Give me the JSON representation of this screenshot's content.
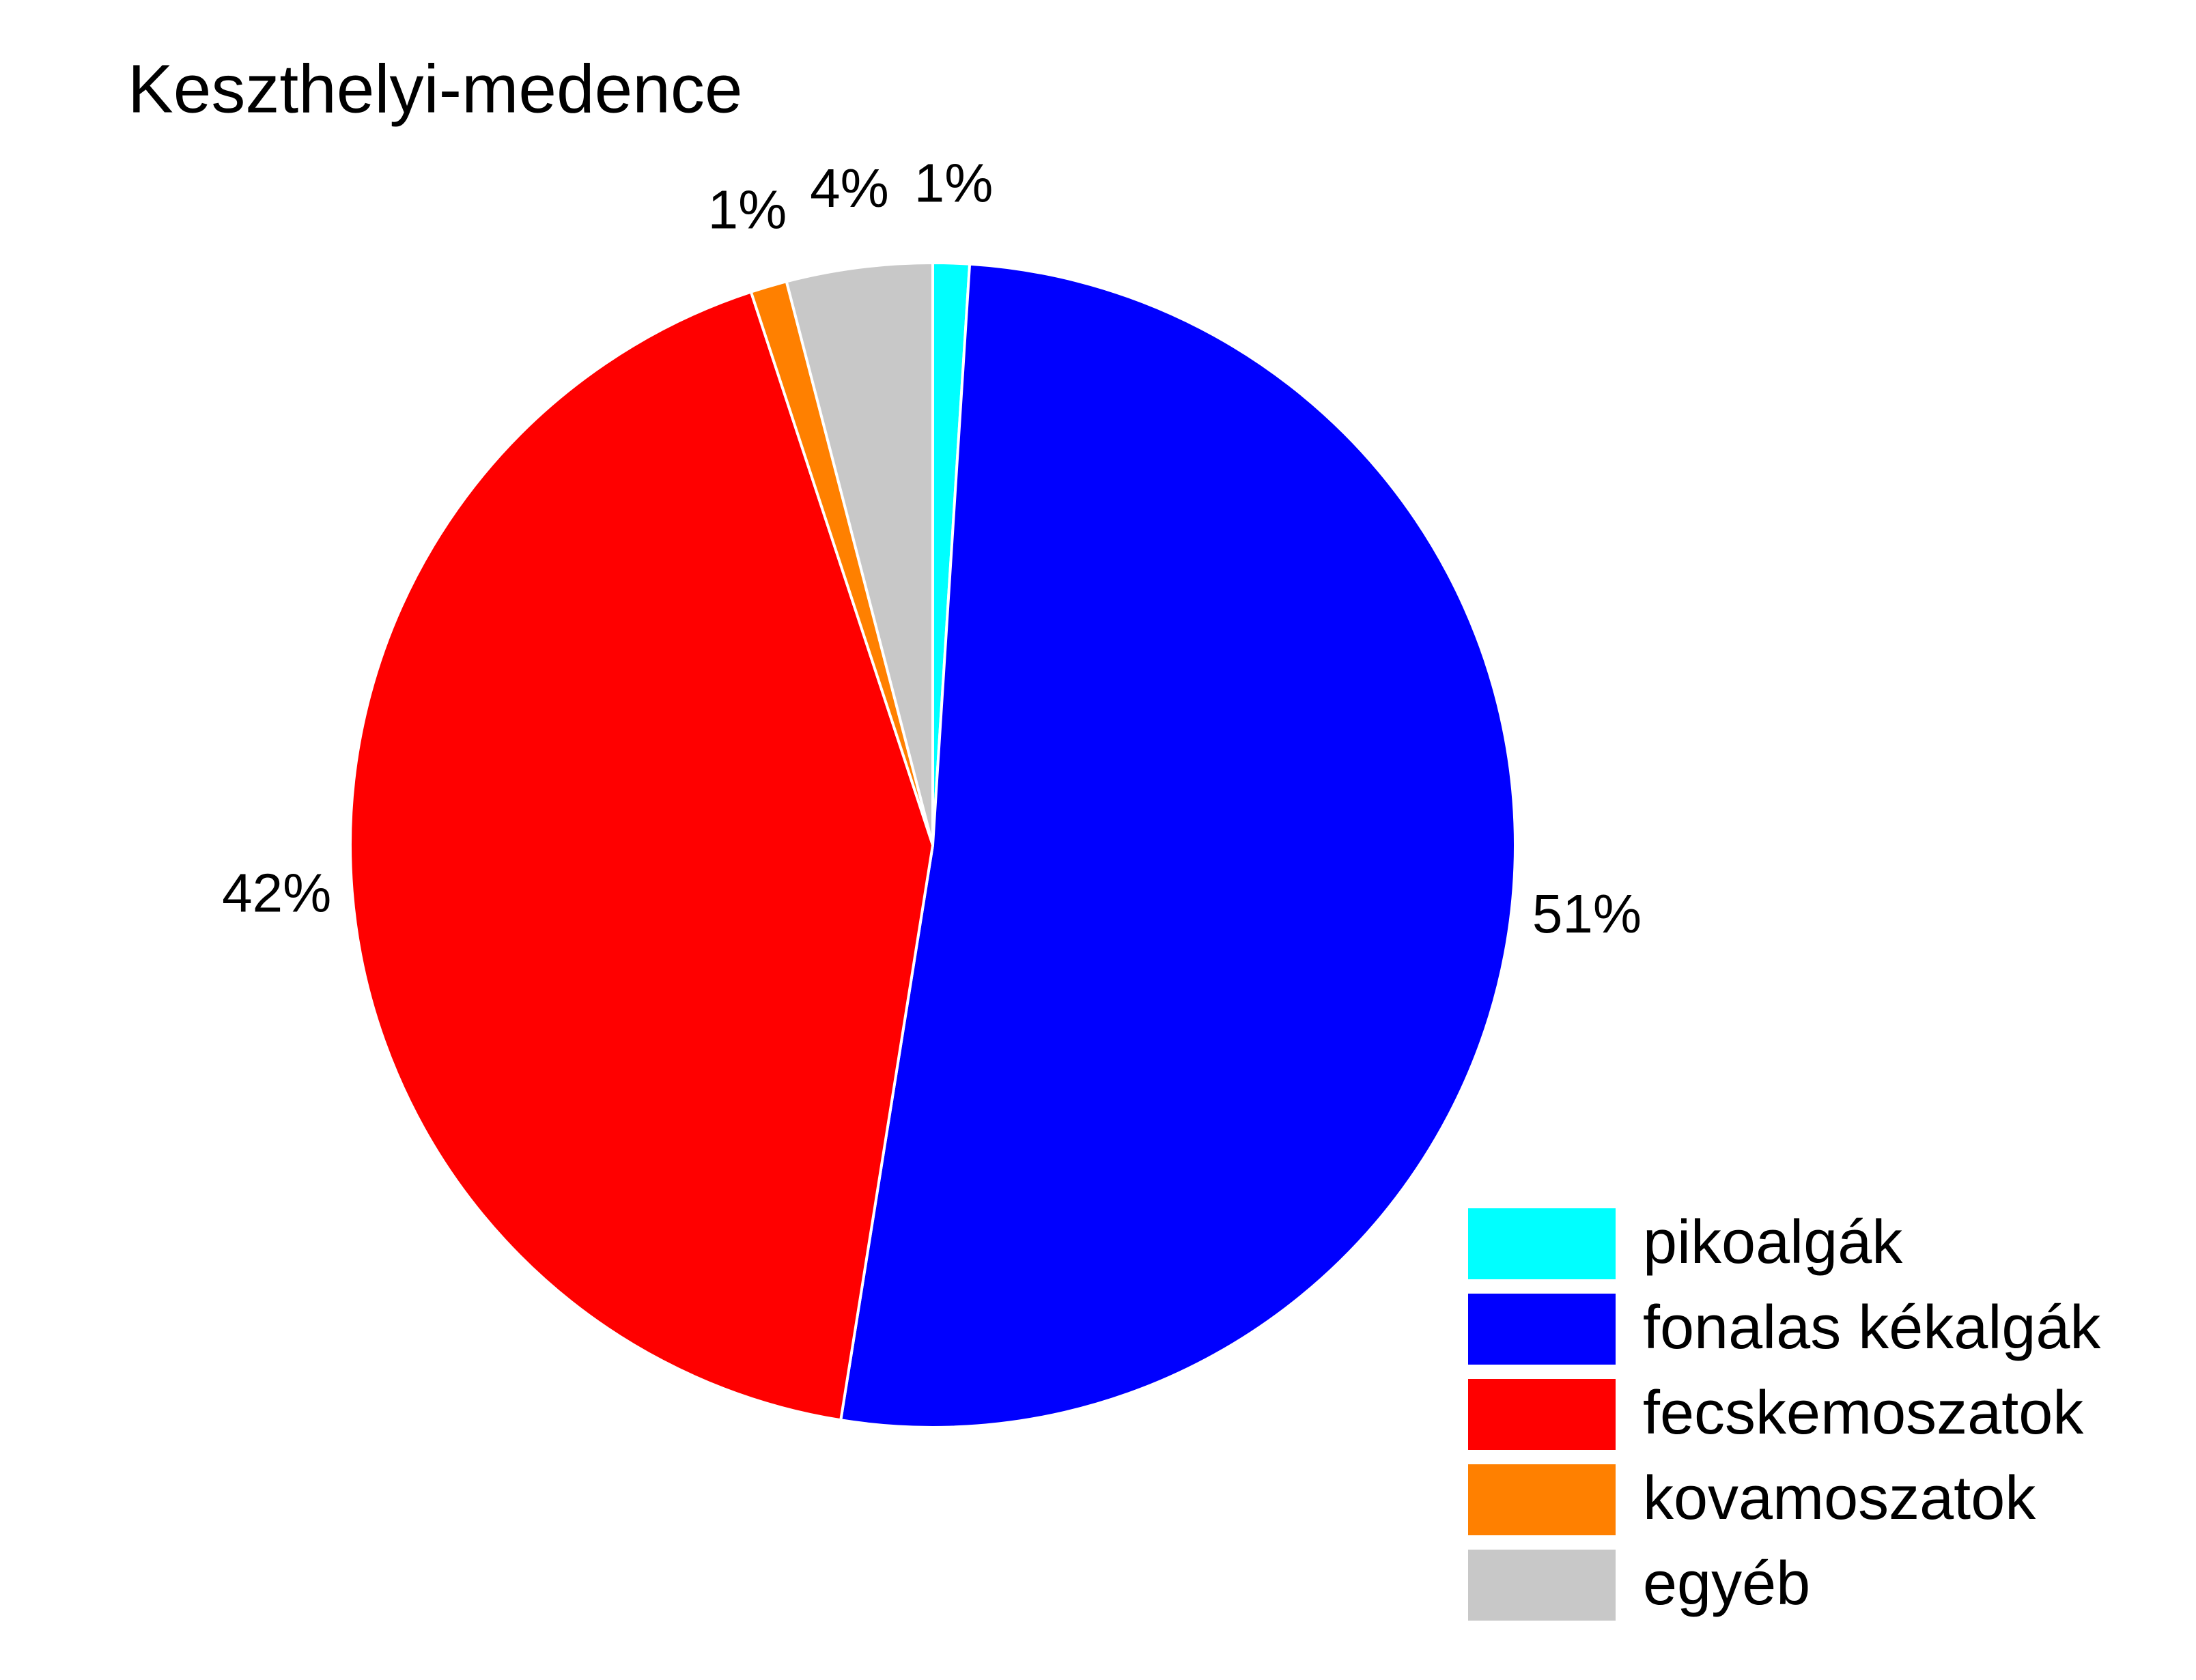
{
  "chart_data": {
    "type": "pie",
    "title": "Keszthelyi-medence",
    "categories": [
      "pikoalgák",
      "fonalas kékalgák",
      "fecskemoszatok",
      "kovamoszatok",
      "egyéb"
    ],
    "values": [
      1,
      51,
      42,
      1,
      4
    ],
    "value_labels": [
      "1%",
      "51%",
      "42%",
      "1%",
      "4%"
    ],
    "colors": [
      "#00ffff",
      "#0000ff",
      "#ff0000",
      "#ff8000",
      "#c8c8c8"
    ],
    "legend": "lower right"
  }
}
